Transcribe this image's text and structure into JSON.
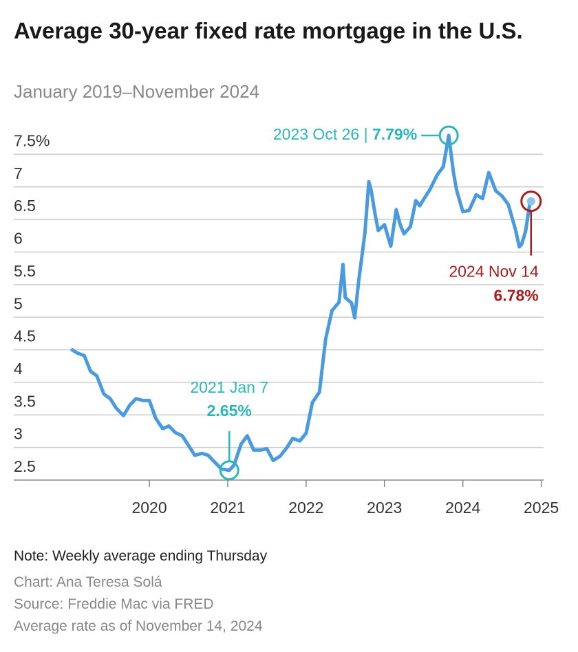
{
  "chart_data": {
    "type": "line",
    "title": "Average 30-year fixed rate mortgage in the U.S.",
    "subtitle": "January 2019–November 2024",
    "color": "#4a9ae0",
    "x": [
      2019.0,
      2019.08,
      2019.17,
      2019.25,
      2019.33,
      2019.42,
      2019.5,
      2019.58,
      2019.67,
      2019.75,
      2019.83,
      2019.92,
      2020.0,
      2020.08,
      2020.17,
      2020.25,
      2020.33,
      2020.42,
      2020.5,
      2020.58,
      2020.67,
      2020.75,
      2020.83,
      2020.92,
      2021.02,
      2021.08,
      2021.17,
      2021.25,
      2021.33,
      2021.42,
      2021.5,
      2021.58,
      2021.67,
      2021.75,
      2021.83,
      2021.92,
      2022.0,
      2022.08,
      2022.17,
      2022.25,
      2022.33,
      2022.42,
      2022.47,
      2022.5,
      2022.58,
      2022.62,
      2022.67,
      2022.75,
      2022.8,
      2022.83,
      2022.88,
      2022.92,
      2023.0,
      2023.08,
      2023.15,
      2023.2,
      2023.25,
      2023.33,
      2023.4,
      2023.45,
      2023.5,
      2023.58,
      2023.67,
      2023.75,
      2023.82,
      2023.88,
      2023.92,
      2024.0,
      2024.08,
      2024.17,
      2024.25,
      2024.33,
      2024.42,
      2024.5,
      2024.58,
      2024.67,
      2024.72,
      2024.75,
      2024.8,
      2024.86,
      2024.87
    ],
    "values": [
      4.51,
      4.45,
      4.41,
      4.17,
      4.1,
      3.82,
      3.75,
      3.6,
      3.49,
      3.65,
      3.75,
      3.72,
      3.72,
      3.45,
      3.29,
      3.33,
      3.23,
      3.18,
      3.03,
      2.88,
      2.91,
      2.88,
      2.78,
      2.67,
      2.65,
      2.73,
      3.05,
      3.18,
      2.96,
      2.96,
      2.98,
      2.8,
      2.87,
      2.99,
      3.14,
      3.1,
      3.22,
      3.69,
      3.85,
      4.67,
      5.1,
      5.23,
      5.81,
      5.3,
      5.22,
      4.99,
      5.55,
      6.29,
      7.08,
      6.95,
      6.58,
      6.33,
      6.42,
      6.09,
      6.65,
      6.42,
      6.28,
      6.39,
      6.79,
      6.71,
      6.81,
      6.96,
      7.18,
      7.31,
      7.79,
      7.22,
      6.95,
      6.62,
      6.64,
      6.88,
      6.82,
      7.22,
      6.94,
      6.86,
      6.73,
      6.35,
      6.08,
      6.12,
      6.32,
      6.79,
      6.78
    ],
    "xlim": [
      2018.27,
      2025.03
    ],
    "xticks": [
      2020,
      2021,
      2022,
      2023,
      2024,
      2025
    ],
    "ylim": [
      2.5,
      7.8
    ],
    "yticks": [
      2.5,
      3,
      3.5,
      4,
      4.5,
      5,
      5.5,
      6,
      6.5,
      {
        "value": 7.5,
        "label": "7.5%"
      },
      7
    ],
    "grid": true,
    "annotations": [
      {
        "x": 2023.82,
        "value": 7.79,
        "label": "2023 Oct 26 |",
        "value_label": "7.79%",
        "color": "#2bb6b9"
      },
      {
        "x": 2021.02,
        "value": 2.65,
        "label": "2021 Jan 7",
        "value_label": "2.65%",
        "color": "#2bb6b9"
      },
      {
        "x": 2024.87,
        "value": 6.78,
        "label": "2024 Nov 14",
        "value_label": "6.78%",
        "color": "#a81d1d"
      }
    ],
    "note": "Note: Weekly average ending Thursday",
    "credit": "Chart: Ana Teresa Solá",
    "source": "Source: Freddie Mac via FRED",
    "date_note": "Average rate as of November 14, 2024"
  }
}
